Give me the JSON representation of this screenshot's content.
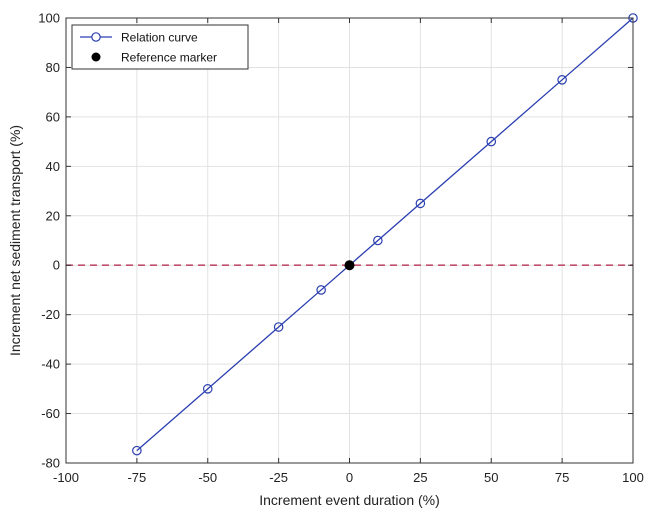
{
  "chart_data": {
    "type": "line",
    "title": "",
    "xlabel": "Increment event duration (%)",
    "ylabel": "Increment net sediment transport (%)",
    "xlim": [
      -100,
      100
    ],
    "ylim": [
      -80,
      100
    ],
    "xticks": [
      -100,
      -75,
      -50,
      -25,
      0,
      25,
      50,
      75,
      100
    ],
    "yticks": [
      -80,
      -60,
      -40,
      -20,
      0,
      20,
      40,
      60,
      80,
      100
    ],
    "grid": true,
    "legend_position": "top-left",
    "series": [
      {
        "name": "Relation curve",
        "color": "#2b3fb0",
        "marker": "open-circle",
        "x": [
          -75,
          -50,
          -25,
          -10,
          0,
          10,
          25,
          50,
          75,
          100
        ],
        "y": [
          -75,
          -50,
          -25,
          -10,
          0,
          10,
          25,
          50,
          75,
          100
        ]
      },
      {
        "name": "Reference marker",
        "color": "#000000",
        "marker": "filled-circle",
        "x": [
          0
        ],
        "y": [
          0
        ]
      }
    ],
    "reference_line": {
      "y": 0,
      "style": "dashed",
      "color": "#c0506e"
    }
  }
}
